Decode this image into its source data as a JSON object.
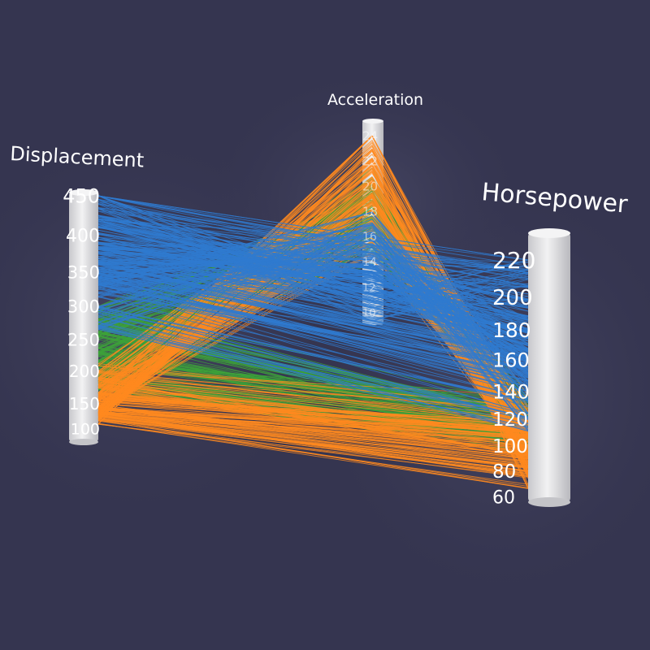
{
  "colors": {
    "background": "#353550",
    "pillar": "#e4e4e6",
    "series_blue": "#2f7bd0",
    "series_orange": "#ff8a1f",
    "series_green": "#3da33a"
  },
  "chart_data": {
    "type": "parallel-coordinates-3d",
    "title": "",
    "axes": [
      {
        "name": "Displacement",
        "range": [
          68,
          455
        ],
        "ticks": [
          "100",
          "150",
          "200",
          "250",
          "300",
          "350",
          "400",
          "450"
        ]
      },
      {
        "name": "Acceleration",
        "range": [
          8,
          24.8
        ],
        "ticks": [
          "24",
          "22",
          "20",
          "18",
          "16",
          "14",
          "12",
          "10"
        ]
      },
      {
        "name": "Horsepower",
        "range": [
          46,
          230
        ],
        "ticks": [
          "60",
          "80",
          "100",
          "120",
          "140",
          "160",
          "180",
          "200",
          "220"
        ]
      }
    ],
    "series": [
      {
        "color": "blue",
        "samples": [
          [
            455,
            10,
            225
          ],
          [
            440,
            8.5,
            215
          ],
          [
            429,
            10,
            198
          ],
          [
            400,
            11.5,
            175
          ],
          [
            400,
            12,
            170
          ],
          [
            400,
            13,
            190
          ],
          [
            383,
            11,
            170
          ],
          [
            360,
            12.5,
            215
          ],
          [
            351,
            13,
            153
          ],
          [
            350,
            12,
            165
          ],
          [
            350,
            13.5,
            160
          ],
          [
            350,
            11.5,
            145
          ],
          [
            318,
            13,
            150
          ],
          [
            318,
            14,
            140
          ],
          [
            307,
            12,
            130
          ],
          [
            304,
            12,
            150
          ],
          [
            302,
            15,
            140
          ],
          [
            262,
            15.5,
            110
          ],
          [
            250,
            16,
            100
          ],
          [
            232,
            15,
            100
          ],
          [
            400,
            14.5,
            180
          ],
          [
            350,
            15,
            170
          ],
          [
            318,
            16,
            135
          ],
          [
            305,
            17,
            130
          ],
          [
            260,
            16.5,
            110
          ],
          [
            454,
            10.5,
            220
          ],
          [
            390,
            12.5,
            190
          ],
          [
            340,
            14,
            160
          ],
          [
            330,
            13.5,
            150
          ],
          [
            300,
            17.5,
            115
          ]
        ]
      },
      {
        "color": "orange",
        "samples": [
          [
            97,
            19,
            88
          ],
          [
            85,
            21,
            65
          ],
          [
            97,
            22,
            78
          ],
          [
            120,
            24.5,
            97
          ],
          [
            91,
            20,
            60
          ],
          [
            98,
            24,
            90
          ],
          [
            97,
            19.5,
            75
          ],
          [
            90,
            18.5,
            70
          ],
          [
            113,
            18,
            95
          ],
          [
            122,
            23.5,
            86
          ],
          [
            105,
            17,
            70
          ],
          [
            89,
            22.5,
            62
          ],
          [
            120,
            19,
            97
          ],
          [
            156,
            22,
            105
          ],
          [
            146,
            20.5,
            97
          ],
          [
            108,
            16.5,
            93
          ],
          [
            91,
            17,
            68
          ],
          [
            134,
            14.5,
            96
          ],
          [
            119,
            16,
            92
          ],
          [
            168,
            21.5,
            116
          ],
          [
            97,
            14.5,
            88
          ],
          [
            145,
            15,
            76
          ],
          [
            80,
            22,
            48
          ],
          [
            79,
            23,
            58
          ],
          [
            141,
            18.5,
            71
          ]
        ]
      },
      {
        "color": "green",
        "samples": [
          [
            140,
            16.5,
            90
          ],
          [
            151,
            18,
            88
          ],
          [
            225,
            19,
            100
          ],
          [
            200,
            17.5,
            85
          ],
          [
            231,
            16,
            105
          ],
          [
            258,
            19,
            110
          ],
          [
            250,
            17.5,
            88
          ],
          [
            122,
            15.5,
            86
          ],
          [
            140,
            19,
            88
          ],
          [
            151,
            19.5,
            90
          ],
          [
            198,
            15.5,
            95
          ],
          [
            232,
            17,
            90
          ],
          [
            250,
            18,
            100
          ],
          [
            171,
            15,
            97
          ],
          [
            141,
            21,
            80
          ],
          [
            156,
            20,
            92
          ],
          [
            173,
            18.5,
            115
          ],
          [
            200,
            16.5,
            95
          ],
          [
            225,
            14,
            105
          ],
          [
            181,
            19.5,
            110
          ]
        ]
      }
    ],
    "line_count": 420
  }
}
